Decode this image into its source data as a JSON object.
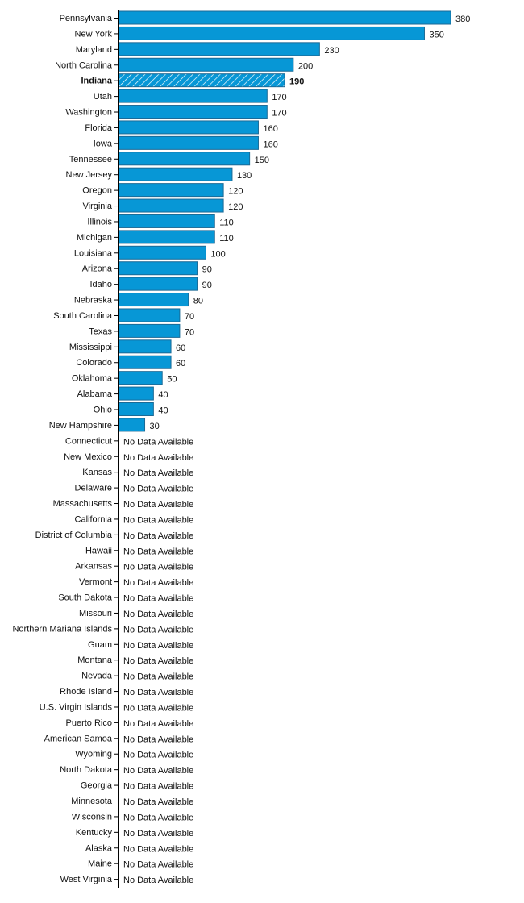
{
  "chart_data": {
    "type": "bar",
    "orientation": "horizontal",
    "title": "",
    "xlabel": "",
    "ylabel": "",
    "xlim": [
      0,
      380
    ],
    "grid": false,
    "highlight": "Indiana",
    "no_data_label": "No Data Available",
    "bar_color": "#0797d6",
    "bar_border_color": "#1b6a96",
    "categories": [
      "Pennsylvania",
      "New York",
      "Maryland",
      "North Carolina",
      "Indiana",
      "Utah",
      "Washington",
      "Florida",
      "Iowa",
      "Tennessee",
      "New Jersey",
      "Oregon",
      "Virginia",
      "Illinois",
      "Michigan",
      "Louisiana",
      "Arizona",
      "Idaho",
      "Nebraska",
      "South Carolina",
      "Texas",
      "Mississippi",
      "Colorado",
      "Oklahoma",
      "Alabama",
      "Ohio",
      "New Hampshire",
      "Connecticut",
      "New Mexico",
      "Kansas",
      "Delaware",
      "Massachusetts",
      "California",
      "District of Columbia",
      "Hawaii",
      "Arkansas",
      "Vermont",
      "South Dakota",
      "Missouri",
      "Northern Mariana Islands",
      "Guam",
      "Montana",
      "Nevada",
      "Rhode Island",
      "U.S. Virgin Islands",
      "Puerto Rico",
      "American Samoa",
      "Wyoming",
      "North Dakota",
      "Georgia",
      "Minnesota",
      "Wisconsin",
      "Kentucky",
      "Alaska",
      "Maine",
      "West Virginia"
    ],
    "values": [
      380,
      350,
      230,
      200,
      190,
      170,
      170,
      160,
      160,
      150,
      130,
      120,
      120,
      110,
      110,
      100,
      90,
      90,
      80,
      70,
      70,
      60,
      60,
      50,
      40,
      40,
      30,
      null,
      null,
      null,
      null,
      null,
      null,
      null,
      null,
      null,
      null,
      null,
      null,
      null,
      null,
      null,
      null,
      null,
      null,
      null,
      null,
      null,
      null,
      null,
      null,
      null,
      null,
      null,
      null,
      null
    ]
  }
}
